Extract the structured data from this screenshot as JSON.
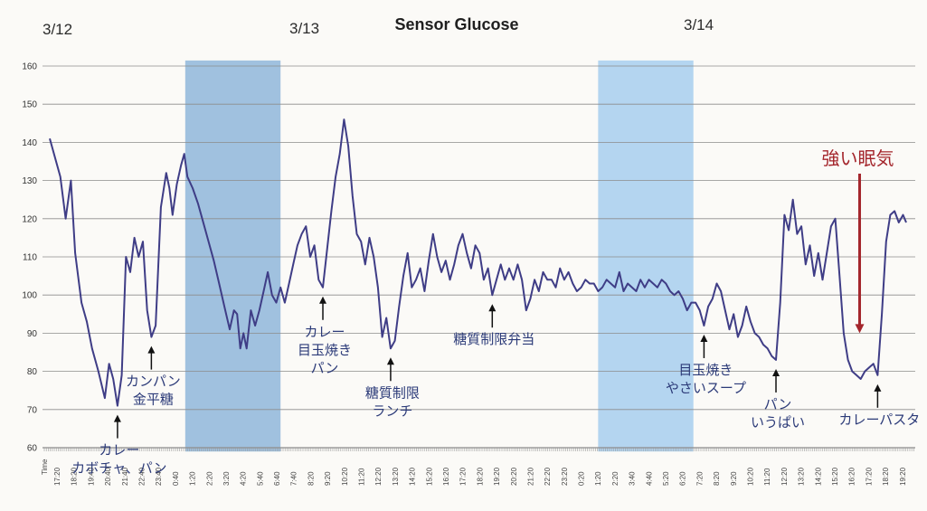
{
  "chart_data": {
    "type": "line",
    "title": "Sensor Glucose",
    "dates": [
      "3/12",
      "3/13",
      "3/14"
    ],
    "x_axis_label": "Time",
    "ylim": [
      60,
      160
    ],
    "yticks": [
      60,
      70,
      80,
      90,
      100,
      110,
      120,
      130,
      140,
      150,
      160
    ],
    "xticks": [
      "17:20",
      "18:20",
      "19:40",
      "20:40",
      "21:40",
      "22:40",
      "23:40",
      "0:40",
      "1:20",
      "2:20",
      "3:20",
      "4:20",
      "5:40",
      "6:40",
      "7:40",
      "8:20",
      "9:20",
      "10:20",
      "11:20",
      "12:20",
      "13:20",
      "14:20",
      "15:20",
      "16:20",
      "17:20",
      "18:20",
      "19:20",
      "20:20",
      "21:20",
      "22:20",
      "23:20",
      "0:20",
      "1:20",
      "2:20",
      "3:40",
      "4:40",
      "5:20",
      "6:20",
      "7:20",
      "8:20",
      "9:20",
      "10:20",
      "11:20",
      "12:20",
      "13:20",
      "14:20",
      "15:20",
      "16:20",
      "17:20",
      "18:20",
      "19:20"
    ],
    "grid": true,
    "sleep_periods": [
      {
        "start": 12.8,
        "end": 21.8,
        "color": "#8fb6da"
      },
      {
        "start": 51.8,
        "end": 60.8,
        "color": "#a7ceee"
      }
    ],
    "series": [
      {
        "color": "#3f3d86",
        "points": [
          [
            0,
            141
          ],
          [
            1,
            131
          ],
          [
            1.5,
            120
          ],
          [
            2,
            130
          ],
          [
            2.4,
            111
          ],
          [
            3,
            98
          ],
          [
            3.5,
            93
          ],
          [
            4,
            86
          ],
          [
            4.6,
            80
          ],
          [
            5.2,
            73
          ],
          [
            5.6,
            82
          ],
          [
            6,
            78
          ],
          [
            6.4,
            71
          ],
          [
            6.8,
            79
          ],
          [
            7.2,
            110
          ],
          [
            7.6,
            106
          ],
          [
            8,
            115
          ],
          [
            8.4,
            110
          ],
          [
            8.8,
            114
          ],
          [
            9.2,
            96
          ],
          [
            9.6,
            89
          ],
          [
            10,
            92
          ],
          [
            10.5,
            123
          ],
          [
            11,
            132
          ],
          [
            11.3,
            128
          ],
          [
            11.6,
            121
          ],
          [
            12,
            129
          ],
          [
            12.4,
            134
          ],
          [
            12.7,
            137
          ],
          [
            13,
            131
          ],
          [
            13.5,
            128
          ],
          [
            14,
            124
          ],
          [
            14.4,
            120
          ],
          [
            15,
            114
          ],
          [
            15.5,
            109
          ],
          [
            16,
            103
          ],
          [
            16.5,
            97
          ],
          [
            17,
            91
          ],
          [
            17.4,
            96
          ],
          [
            17.7,
            95
          ],
          [
            18,
            86
          ],
          [
            18.3,
            90
          ],
          [
            18.6,
            86
          ],
          [
            19,
            96
          ],
          [
            19.4,
            92
          ],
          [
            19.8,
            96
          ],
          [
            20.2,
            101
          ],
          [
            20.6,
            106
          ],
          [
            21,
            100
          ],
          [
            21.4,
            98
          ],
          [
            21.8,
            102
          ],
          [
            22.2,
            98
          ],
          [
            22.6,
            103
          ],
          [
            23,
            108
          ],
          [
            23.4,
            113
          ],
          [
            23.8,
            116
          ],
          [
            24.2,
            118
          ],
          [
            24.6,
            110
          ],
          [
            25,
            113
          ],
          [
            25.4,
            104
          ],
          [
            25.8,
            102
          ],
          [
            26.2,
            112
          ],
          [
            26.6,
            122
          ],
          [
            27,
            131
          ],
          [
            27.4,
            137
          ],
          [
            27.8,
            146
          ],
          [
            28.2,
            139
          ],
          [
            28.6,
            126
          ],
          [
            29,
            116
          ],
          [
            29.4,
            114
          ],
          [
            29.8,
            108
          ],
          [
            30.2,
            115
          ],
          [
            30.6,
            110
          ],
          [
            31,
            102
          ],
          [
            31.4,
            89
          ],
          [
            31.8,
            94
          ],
          [
            32.2,
            86
          ],
          [
            32.6,
            88
          ],
          [
            33,
            97
          ],
          [
            33.4,
            105
          ],
          [
            33.8,
            111
          ],
          [
            34.2,
            102
          ],
          [
            34.6,
            104
          ],
          [
            35,
            107
          ],
          [
            35.4,
            101
          ],
          [
            35.8,
            109
          ],
          [
            36.2,
            116
          ],
          [
            36.6,
            110
          ],
          [
            37,
            106
          ],
          [
            37.4,
            109
          ],
          [
            37.8,
            104
          ],
          [
            38.2,
            108
          ],
          [
            38.6,
            113
          ],
          [
            39,
            116
          ],
          [
            39.4,
            111
          ],
          [
            39.8,
            107
          ],
          [
            40.2,
            113
          ],
          [
            40.6,
            111
          ],
          [
            41,
            104
          ],
          [
            41.4,
            107
          ],
          [
            41.8,
            100
          ],
          [
            42.2,
            104
          ],
          [
            42.6,
            108
          ],
          [
            43,
            104
          ],
          [
            43.4,
            107
          ],
          [
            43.8,
            104
          ],
          [
            44.2,
            108
          ],
          [
            44.6,
            104
          ],
          [
            45,
            96
          ],
          [
            45.4,
            99
          ],
          [
            45.8,
            104
          ],
          [
            46.2,
            101
          ],
          [
            46.6,
            106
          ],
          [
            47,
            104
          ],
          [
            47.4,
            104
          ],
          [
            47.8,
            102
          ],
          [
            48.2,
            107
          ],
          [
            48.6,
            104
          ],
          [
            49,
            106
          ],
          [
            49.4,
            103
          ],
          [
            49.8,
            101
          ],
          [
            50.2,
            102
          ],
          [
            50.6,
            104
          ],
          [
            51,
            103
          ],
          [
            51.4,
            103
          ],
          [
            51.8,
            101
          ],
          [
            52.2,
            102
          ],
          [
            52.6,
            104
          ],
          [
            53,
            103
          ],
          [
            53.4,
            102
          ],
          [
            53.8,
            106
          ],
          [
            54.2,
            101
          ],
          [
            54.6,
            103
          ],
          [
            55,
            102
          ],
          [
            55.4,
            101
          ],
          [
            55.8,
            104
          ],
          [
            56.2,
            102
          ],
          [
            56.6,
            104
          ],
          [
            57,
            103
          ],
          [
            57.4,
            102
          ],
          [
            57.8,
            104
          ],
          [
            58.2,
            103
          ],
          [
            58.6,
            101
          ],
          [
            59,
            100
          ],
          [
            59.4,
            101
          ],
          [
            59.8,
            99
          ],
          [
            60.2,
            96
          ],
          [
            60.6,
            98
          ],
          [
            61,
            98
          ],
          [
            61.4,
            96
          ],
          [
            61.8,
            92
          ],
          [
            62.2,
            97
          ],
          [
            62.6,
            99
          ],
          [
            63,
            103
          ],
          [
            63.4,
            101
          ],
          [
            63.8,
            96
          ],
          [
            64.2,
            91
          ],
          [
            64.6,
            95
          ],
          [
            65,
            89
          ],
          [
            65.4,
            92
          ],
          [
            65.8,
            97
          ],
          [
            66.2,
            93
          ],
          [
            66.6,
            90
          ],
          [
            67,
            89
          ],
          [
            67.4,
            87
          ],
          [
            67.8,
            86
          ],
          [
            68.2,
            84
          ],
          [
            68.6,
            83
          ],
          [
            69,
            98
          ],
          [
            69.4,
            121
          ],
          [
            69.8,
            117
          ],
          [
            70.2,
            125
          ],
          [
            70.6,
            116
          ],
          [
            71,
            118
          ],
          [
            71.4,
            108
          ],
          [
            71.8,
            113
          ],
          [
            72.2,
            105
          ],
          [
            72.6,
            111
          ],
          [
            73,
            104
          ],
          [
            73.4,
            111
          ],
          [
            73.8,
            118
          ],
          [
            74.2,
            120
          ],
          [
            74.6,
            105
          ],
          [
            75,
            90
          ],
          [
            75.4,
            83
          ],
          [
            75.8,
            80
          ],
          [
            76.2,
            79
          ],
          [
            76.6,
            78
          ],
          [
            77,
            80
          ],
          [
            77.4,
            81
          ],
          [
            77.8,
            82
          ],
          [
            78.2,
            79
          ],
          [
            78.6,
            95
          ],
          [
            79,
            114
          ],
          [
            79.4,
            121
          ],
          [
            79.8,
            122
          ],
          [
            80.2,
            119
          ],
          [
            80.6,
            121
          ],
          [
            80.9,
            119
          ]
        ]
      }
    ],
    "annotations": [
      {
        "lines": [
          "カレー",
          "カボチャ、パン"
        ],
        "x": 6.4,
        "value": 71,
        "color": "#2b3a78"
      },
      {
        "lines": [
          "カンパン",
          "金平糖"
        ],
        "x": 9.6,
        "value": 89,
        "color": "#2b3a78"
      },
      {
        "lines": [
          "カレー",
          "目玉焼き",
          "パン"
        ],
        "x": 25.8,
        "value": 102,
        "color": "#2b3a78"
      },
      {
        "lines": [
          "糖質制限",
          "ランチ"
        ],
        "x": 32.2,
        "value": 86,
        "color": "#2b3a78"
      },
      {
        "lines": [
          "糖質制限弁当"
        ],
        "x": 41.8,
        "value": 100,
        "color": "#2b3a78"
      },
      {
        "lines": [
          "目玉焼き",
          "やさいスープ"
        ],
        "x": 61.8,
        "value": 92,
        "color": "#2b3a78"
      },
      {
        "lines": [
          "パン",
          "いうぱい"
        ],
        "x": 68.6,
        "value": 83,
        "color": "#2b3a78"
      },
      {
        "lines": [
          "カレーパスタ"
        ],
        "x": 78.2,
        "value": 79,
        "color": "#2b3a78"
      },
      {
        "lines": [
          "強い眠気"
        ],
        "x": 76.5,
        "value": 90,
        "color": "#a4262c",
        "style": "warning"
      }
    ]
  }
}
